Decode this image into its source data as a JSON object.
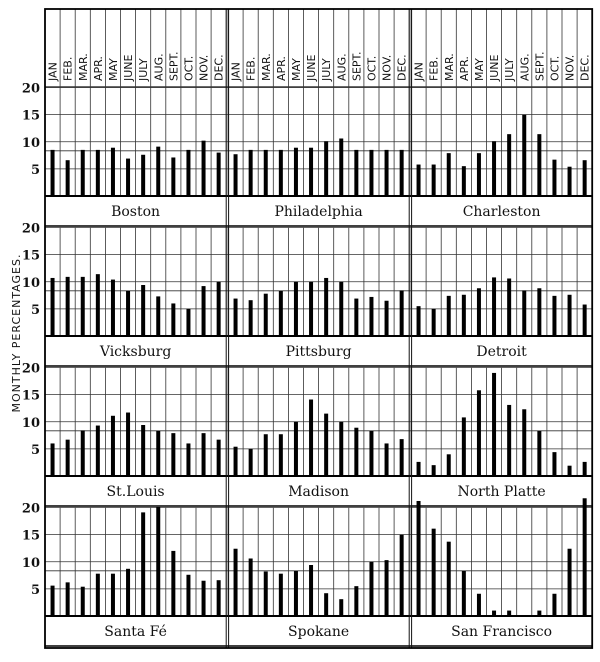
{
  "chart_data": {
    "type": "bar",
    "ylabel": "MONTHLY PERCENTAGES.",
    "ylim": [
      0,
      20
    ],
    "yticks": [
      5,
      10,
      15,
      20
    ],
    "reference_line": 8.33,
    "grid": true,
    "categories": [
      "JAN",
      "FEB.",
      "MAR.",
      "APR.",
      "MAY",
      "JUNE",
      "JULY",
      "AUG.",
      "SEPT.",
      "OCT.",
      "NOV.",
      "DEC."
    ],
    "panels": [
      {
        "name": "Boston",
        "values": [
          8.5,
          6.6,
          8.5,
          8.5,
          8.9,
          6.9,
          7.6,
          9.1,
          7.1,
          8.5,
          10.2,
          8.0
        ]
      },
      {
        "name": "Philadelphia",
        "values": [
          7.7,
          8.5,
          8.5,
          8.5,
          8.9,
          8.9,
          10.1,
          10.6,
          8.5,
          8.5,
          8.5,
          8.5
        ]
      },
      {
        "name": "Charleston",
        "values": [
          5.8,
          5.8,
          7.9,
          5.5,
          7.9,
          10.1,
          11.4,
          15.0,
          11.4,
          6.7,
          5.4,
          6.6
        ]
      },
      {
        "name": "Vicksburg",
        "values": [
          10.7,
          10.9,
          10.9,
          11.4,
          10.4,
          8.3,
          9.4,
          7.3,
          6.0,
          5.0,
          9.2,
          10.0
        ]
      },
      {
        "name": "Pittsburg",
        "values": [
          6.9,
          6.6,
          7.8,
          8.3,
          10.0,
          10.0,
          10.7,
          10.0,
          6.9,
          7.2,
          6.5,
          8.4
        ]
      },
      {
        "name": "Detroit",
        "values": [
          5.5,
          5.0,
          7.4,
          7.6,
          8.8,
          10.8,
          10.6,
          8.4,
          8.8,
          7.4,
          7.6,
          5.8
        ]
      },
      {
        "name": "St.Louis",
        "values": [
          6.0,
          6.7,
          8.4,
          9.3,
          11.1,
          11.7,
          9.4,
          8.3,
          7.9,
          6.0,
          7.9,
          6.7
        ]
      },
      {
        "name": "Madison",
        "values": [
          5.4,
          5.0,
          7.7,
          7.7,
          10.0,
          14.1,
          11.5,
          10.0,
          8.9,
          8.3,
          6.0,
          6.8
        ]
      },
      {
        "name": "North Platte",
        "values": [
          2.6,
          2.0,
          4.0,
          10.8,
          15.8,
          19.0,
          13.1,
          12.3,
          8.3,
          4.4,
          1.9,
          2.6
        ]
      },
      {
        "name": "Santa Fé",
        "values": [
          5.6,
          6.2,
          5.4,
          7.8,
          7.8,
          8.7,
          19.1,
          20.1,
          12.0,
          7.6,
          6.5,
          6.6
        ]
      },
      {
        "name": "Spokane",
        "values": [
          12.4,
          10.6,
          8.2,
          7.8,
          8.3,
          9.4,
          4.2,
          3.1,
          5.5,
          10.0,
          10.3,
          15.0
        ]
      },
      {
        "name": "San Francisco",
        "values": [
          21.2,
          16.1,
          13.7,
          8.3,
          4.1,
          1.0,
          1.0,
          0,
          1.0,
          4.1,
          12.4,
          21.7
        ]
      }
    ]
  }
}
